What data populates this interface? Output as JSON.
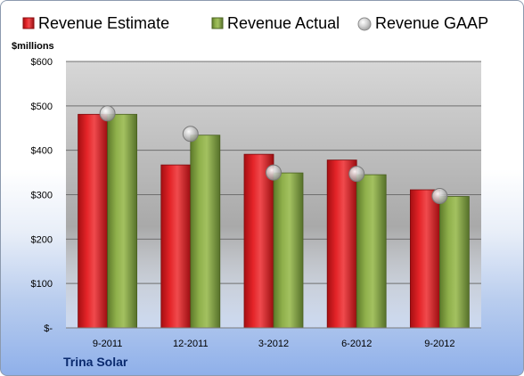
{
  "chart_data": {
    "type": "bar",
    "categories": [
      "9-2011",
      "12-2011",
      "3-2012",
      "6-2012",
      "9-2012"
    ],
    "series": [
      {
        "name": "Revenue Estimate",
        "type": "bar",
        "color": "#d8191e",
        "values": [
          481,
          367,
          391,
          378,
          311
        ]
      },
      {
        "name": "Revenue Actual",
        "type": "bar",
        "color": "#7f9e3f",
        "values": [
          481,
          434,
          349,
          345,
          296
        ]
      },
      {
        "name": "Revenue GAAP",
        "type": "marker",
        "color": "#b4b4b4",
        "values": [
          483,
          437,
          350,
          347,
          297
        ]
      }
    ],
    "yunit": "$millions",
    "ylim": [
      0,
      600
    ],
    "yticks": [
      0,
      100,
      200,
      300,
      400,
      500,
      600
    ],
    "ytick_labels": [
      "$-",
      "$100",
      "$200",
      "$300",
      "$400",
      "$500",
      "$600"
    ],
    "grid": true,
    "legend": "top",
    "company": "Trina Solar"
  }
}
